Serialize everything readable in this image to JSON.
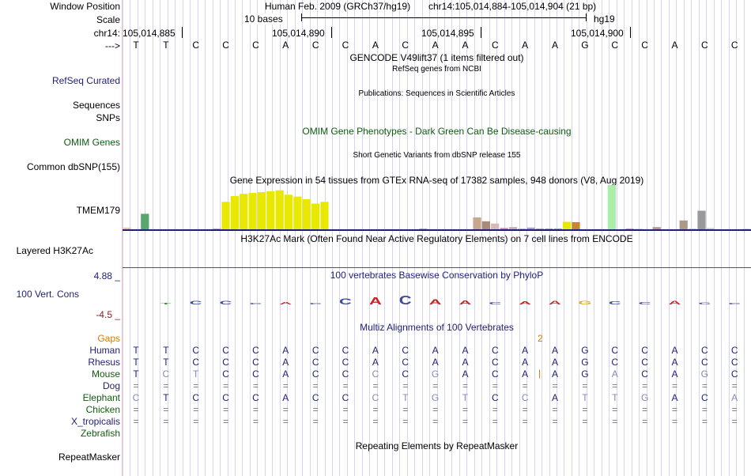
{
  "position": {
    "window_position_label": "Window Position",
    "assembly_text": "Human Feb. 2009 (GRCh37/hg19)",
    "coords_text": "chr14:105,014,884-105,014,904 (21 bp)",
    "scale_label": "Scale",
    "scale_bar_text": "10 bases",
    "assembly_short": "hg19",
    "chrom_label": "chr14:",
    "ticks": [
      "105,014,885",
      "105,014,890",
      "105,014,895",
      "105,014,900"
    ],
    "strand_label": "--->"
  },
  "sequence": [
    "T",
    "T",
    "C",
    "C",
    "C",
    "A",
    "C",
    "C",
    "A",
    "C",
    "A",
    "A",
    "C",
    "A",
    "A",
    "G",
    "C",
    "C",
    "A",
    "C",
    "C"
  ],
  "tracks": {
    "gencode_title": "GENCODE V49lift37 (1 items filtered out)",
    "refseq_subtitle": "RefSeq genes from NCBI",
    "refseq_label": "RefSeq Curated",
    "pubs_label": "Sequences",
    "pubs_title": "Publications: Sequences in Scientific Articles",
    "snps_label": "SNPs",
    "omim_title": "OMIM Gene Phenotypes - Dark Green Can Be Disease-causing",
    "omim_label": "OMIM Genes",
    "dbsnp_title": "Short Genetic Variants from dbSNP release 155",
    "dbsnp_label": "Common dbSNP(155)",
    "gtex_title": "Gene Expression in 54 tissues from GTEx RNA-seq of 17382 samples, 948 donors (V8, Aug 2019)",
    "gtex_label": "TMEM179",
    "h3k27_title": "H3K27Ac Mark (Often Found Near Active Regulatory Elements) on 7 cell lines from ENCODE",
    "h3k27_label": "Layered H3K27Ac",
    "cons_max": "4.88 _",
    "cons_label": "100 Vert. Cons",
    "cons_min": "-4.5 _",
    "cons_title": "100 vertebrates Basewise Conservation by PhyloP",
    "multiz_title": "Multiz Alignments of 100 Vertebrates",
    "gaps_label": "Gaps",
    "gaps_value": "2",
    "rmsk_title": "Repeating Elements by RepeatMasker",
    "rmsk_label": "RepeatMasker"
  },
  "gtex_values": [
    0.04,
    0,
    0.35,
    0,
    0,
    0,
    0,
    0,
    0,
    0,
    0.01,
    0.62,
    0.75,
    0.8,
    0.82,
    0.84,
    0.86,
    0.88,
    0.78,
    0.74,
    0.68,
    0.58,
    0.62,
    0,
    0,
    0,
    0,
    0,
    0,
    0,
    0,
    0,
    0,
    0.01,
    0,
    0,
    0,
    0,
    0,
    0.27,
    0.18,
    0.13,
    0.03,
    0.05,
    0.02,
    0.04,
    0.01,
    0.01,
    0.02,
    0.17,
    0.16,
    0,
    0,
    0,
    1.0,
    0,
    0.02,
    0.01,
    0,
    0.05,
    0,
    0,
    0.2,
    0.02,
    0.42,
    0.03,
    0,
    0,
    0,
    0.02
  ],
  "gtex_colors": [
    "#e3c9a3",
    "#ffffff",
    "#5aa66e",
    "#ffffff",
    "#ffffff",
    "#ffffff",
    "#ffffff",
    "#ffffff",
    "#ffffff",
    "#ffffff",
    "#8c8c8c",
    "#e8e800",
    "#e8e800",
    "#e8e800",
    "#e8e800",
    "#e8e800",
    "#e8e800",
    "#e8e800",
    "#e8e800",
    "#e8e800",
    "#e8e800",
    "#e8e800",
    "#e8e800",
    "#ffffff",
    "#ffffff",
    "#ffffff",
    "#ffffff",
    "#ffffff",
    "#ffffff",
    "#ffffff",
    "#ffffff",
    "#ffffff",
    "#ffffff",
    "#9966cc",
    "#ffffff",
    "#ffffff",
    "#ffffff",
    "#ffffff",
    "#ffffff",
    "#c8a88c",
    "#a88c78",
    "#d8b8b8",
    "#cc88aa",
    "#ccaaaa",
    "#bbbbbb",
    "#aa99cc",
    "#7766aa",
    "#5566bb",
    "#bbbb00",
    "#e8e800",
    "#c8862e",
    "#ffffff",
    "#ffffff",
    "#ffffff",
    "#aaeeaa",
    "#ffffff",
    "#d0a0b0",
    "#c0c0c0",
    "#ffffff",
    "#bb9988",
    "#ffffff",
    "#ffffff",
    "#aa9988",
    "#cccccc",
    "#999999",
    "#cccccc",
    "#ffffff",
    "#ffffff",
    "#ffffff",
    "#dddddd"
  ],
  "species": [
    {
      "name": "Human",
      "color": "#1f1f73",
      "seq": [
        "T",
        "T",
        "C",
        "C",
        "C",
        "A",
        "C",
        "C",
        "A",
        "C",
        "A",
        "A",
        "C",
        "A",
        "A",
        "G",
        "C",
        "C",
        "A",
        "C",
        "C"
      ]
    },
    {
      "name": "Rhesus",
      "color": "#1f1f73",
      "seq": [
        "T",
        "T",
        "C",
        "C",
        "C",
        "A",
        "C",
        "C",
        "A",
        "C",
        "A",
        "A",
        "C",
        "A",
        "A",
        "G",
        "C",
        "C",
        "A",
        "C",
        "C"
      ]
    },
    {
      "name": "Mouse",
      "color": "#0f5c0f",
      "seq": [
        "T",
        "C",
        "T",
        "C",
        "C",
        "A",
        "C",
        "C",
        "C",
        "C",
        "G",
        "A",
        "C",
        "A",
        "A",
        "G",
        "A",
        "C",
        "A",
        "G",
        "C"
      ]
    },
    {
      "name": "Dog",
      "color": "#1f1f73",
      "seq": [
        "=",
        "=",
        "=",
        "=",
        "=",
        "=",
        "=",
        "=",
        "=",
        "=",
        "=",
        "=",
        "=",
        "=",
        "=",
        "=",
        "=",
        "=",
        "=",
        "=",
        "="
      ]
    },
    {
      "name": "Elephant",
      "color": "#0f5c0f",
      "seq": [
        "C",
        "T",
        "C",
        "C",
        "C",
        "A",
        "C",
        "C",
        "C",
        "T",
        "G",
        "T",
        "C",
        "C",
        "A",
        "T",
        "T",
        "G",
        "A",
        "C",
        "A"
      ]
    },
    {
      "name": "Chicken",
      "color": "#0f5c0f",
      "seq": [
        "=",
        "=",
        "=",
        "=",
        "=",
        "=",
        "=",
        "=",
        "=",
        "=",
        "=",
        "=",
        "=",
        "=",
        "=",
        "=",
        "=",
        "=",
        "=",
        "=",
        "="
      ]
    },
    {
      "name": "X_tropicalis",
      "color": "#1f1f73",
      "seq": [
        "=",
        "=",
        "=",
        "=",
        "=",
        "=",
        "=",
        "=",
        "=",
        "=",
        "=",
        "=",
        "=",
        "=",
        "=",
        "=",
        "=",
        "=",
        "=",
        "=",
        "="
      ]
    },
    {
      "name": "Zebrafish",
      "color": "#0f5c0f",
      "seq": []
    }
  ],
  "mouse_diff": [
    false,
    true,
    true,
    false,
    false,
    false,
    false,
    false,
    true,
    false,
    true,
    false,
    false,
    false,
    false,
    false,
    true,
    false,
    false,
    true,
    false
  ],
  "elephant_diff": [
    true,
    false,
    false,
    false,
    false,
    false,
    false,
    false,
    true,
    true,
    true,
    true,
    false,
    true,
    false,
    true,
    true,
    true,
    false,
    false,
    true
  ],
  "cons_scores": [
    0,
    0.1,
    0.3,
    0.3,
    0.1,
    0.2,
    0.05,
    0.5,
    0.6,
    0.7,
    0.4,
    0.35,
    0.2,
    0.25,
    0.3,
    0.28,
    0.25,
    0.2,
    0.3,
    0.18,
    0.1
  ],
  "colors": {
    "navy": "#1f1f73",
    "green": "#0f5c0f",
    "orange": "#d67b00",
    "grid": "#d4d4ee"
  }
}
